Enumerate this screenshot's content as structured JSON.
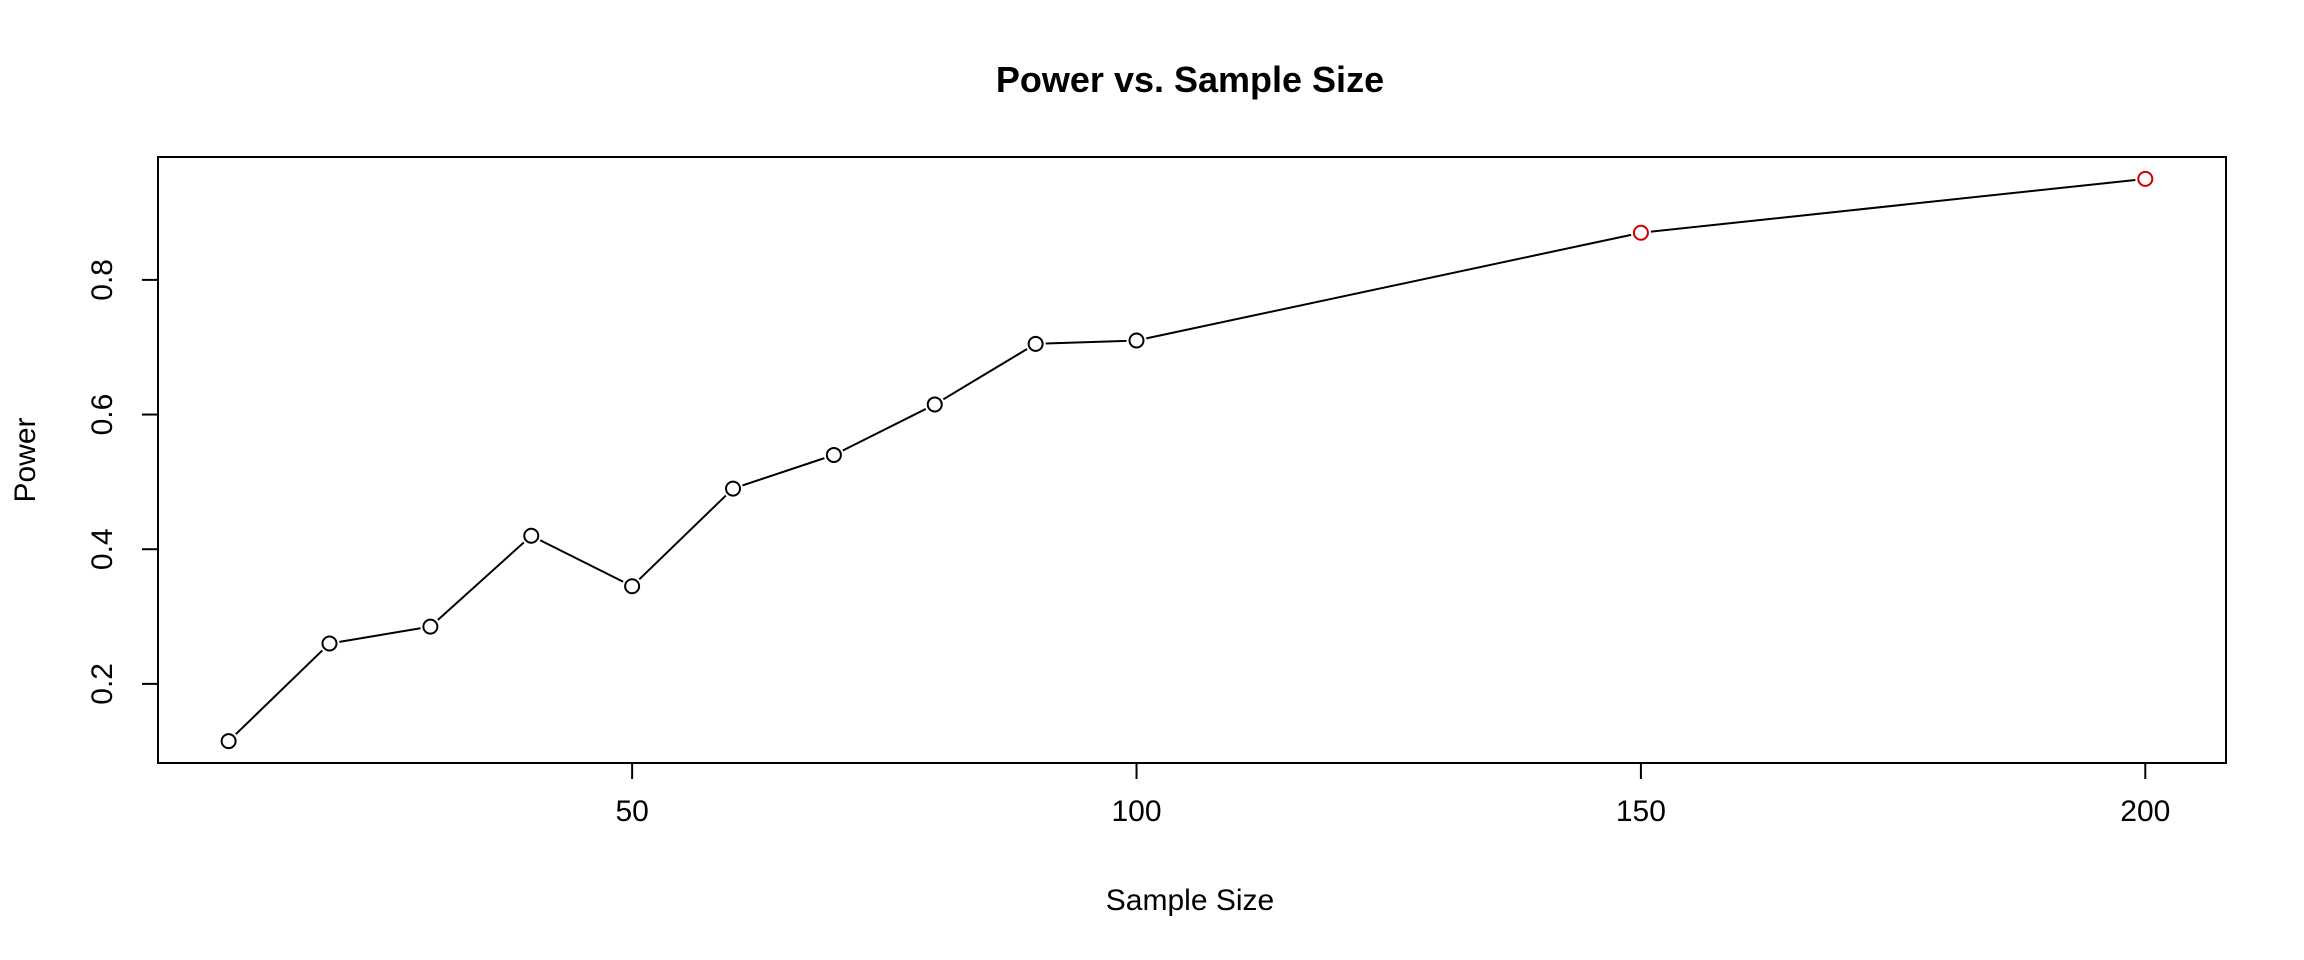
{
  "chart_data": {
    "type": "line",
    "title": "Power vs. Sample Size",
    "xlabel": "Sample Size",
    "ylabel": "Power",
    "xlim": [
      3,
      208
    ],
    "ylim": [
      0.0825,
      0.9825
    ],
    "x_ticks": [
      50,
      100,
      150,
      200
    ],
    "y_ticks": [
      0.2,
      0.4,
      0.6,
      0.8
    ],
    "grid": false,
    "series": [
      {
        "x": [
          10,
          20,
          30,
          40,
          50,
          60,
          70,
          80,
          90,
          100,
          150,
          200
        ],
        "y": [
          0.115,
          0.26,
          0.285,
          0.42,
          0.345,
          0.49,
          0.54,
          0.615,
          0.705,
          0.71,
          0.87,
          0.95
        ],
        "line_color": "#000000",
        "point_colors": [
          "#000000",
          "#000000",
          "#000000",
          "#000000",
          "#000000",
          "#000000",
          "#000000",
          "#000000",
          "#000000",
          "#000000",
          "#cc0000",
          "#cc0000"
        ]
      }
    ]
  }
}
